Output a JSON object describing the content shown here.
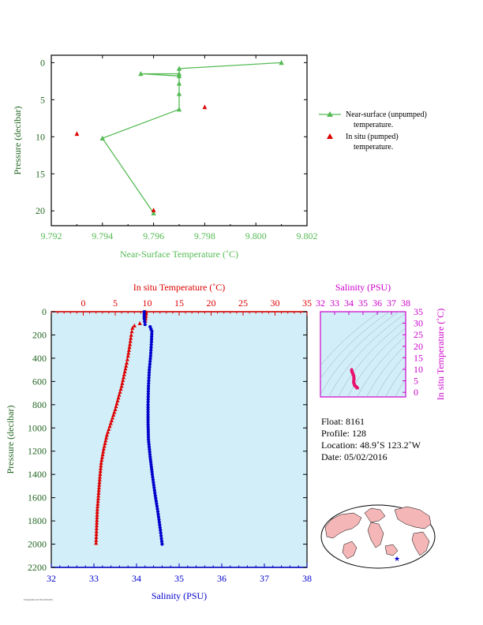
{
  "chart_data": [
    {
      "type": "line",
      "xlabel": "Near-Surface Temperature (˚C)",
      "ylabel": "Pressure (decibar)",
      "xlim": [
        9.792,
        9.802
      ],
      "ylim": [
        22,
        -1
      ],
      "xticks": [
        "9.792",
        "9.794",
        "9.796",
        "9.798",
        "9.800",
        "9.802"
      ],
      "yticks": [
        "0",
        "5",
        "10",
        "15",
        "20"
      ],
      "legend_position": "right",
      "colors": {
        "near_surface": "#55bb55",
        "in_situ": "#dd0000"
      },
      "series": [
        {
          "name": "Near-surface (unpumped)",
          "name2": "temperature.",
          "marker": "triangle",
          "connected": true,
          "points": [
            [
              9.801,
              0.0
            ],
            [
              9.797,
              0.8
            ],
            [
              9.797,
              1.5
            ],
            [
              9.7955,
              1.5
            ],
            [
              9.797,
              1.8
            ],
            [
              9.797,
              2.8
            ],
            [
              9.797,
              4.2
            ],
            [
              9.797,
              6.3
            ],
            [
              9.794,
              10.2
            ],
            [
              9.796,
              20.3
            ]
          ]
        },
        {
          "name": "In situ (pumped)",
          "name2": "temperature.",
          "marker": "triangle",
          "connected": false,
          "points": [
            [
              9.798,
              6.0
            ],
            [
              9.793,
              9.6
            ],
            [
              9.796,
              19.9
            ]
          ]
        }
      ]
    },
    {
      "type": "scatter",
      "xlabel": "Salinity (PSU)",
      "x2label": "In situ Temperature (˚C)",
      "ylabel": "Pressure (decibar)",
      "xlim": [
        32,
        38
      ],
      "x2lim": [
        -5,
        35
      ],
      "ylim": [
        2200,
        0
      ],
      "xticks": [
        "32",
        "33",
        "34",
        "35",
        "36",
        "37",
        "38"
      ],
      "x2ticks": [
        "0",
        "5",
        "10",
        "15",
        "20",
        "25",
        "30",
        "35"
      ],
      "yticks": [
        "0",
        "200",
        "400",
        "600",
        "800",
        "1000",
        "1200",
        "1400",
        "1600",
        "1800",
        "2000",
        "2200"
      ],
      "background": "#d2eef8",
      "colors": {
        "temperature": "#dd0000",
        "salinity": "#0000cc"
      },
      "series": [
        {
          "name": "In situ Temperature",
          "marker": "triangle",
          "axis": "top",
          "points": [
            [
              9.8,
              0
            ],
            [
              9.8,
              40
            ],
            [
              9.7,
              80
            ],
            [
              8.0,
              120
            ],
            [
              7.7,
              140
            ],
            [
              7.5,
              200
            ],
            [
              7.3,
              280
            ],
            [
              7.0,
              380
            ],
            [
              6.8,
              440
            ],
            [
              6.4,
              540
            ],
            [
              6.0,
              640
            ],
            [
              5.5,
              740
            ],
            [
              5.0,
              840
            ],
            [
              4.3,
              960
            ],
            [
              3.7,
              1060
            ],
            [
              3.2,
              1180
            ],
            [
              2.8,
              1300
            ],
            [
              2.6,
              1420
            ],
            [
              2.4,
              1560
            ],
            [
              2.2,
              1700
            ],
            [
              2.1,
              1840
            ],
            [
              2.0,
              1990
            ]
          ]
        },
        {
          "name": "Salinity",
          "marker": "circle",
          "axis": "bottom",
          "points": [
            [
              34.18,
              0
            ],
            [
              34.18,
              60
            ],
            [
              34.2,
              110
            ],
            [
              34.32,
              130
            ],
            [
              34.36,
              170
            ],
            [
              34.35,
              260
            ],
            [
              34.33,
              380
            ],
            [
              34.3,
              500
            ],
            [
              34.28,
              640
            ],
            [
              34.27,
              800
            ],
            [
              34.27,
              950
            ],
            [
              34.28,
              1100
            ],
            [
              34.32,
              1250
            ],
            [
              34.37,
              1400
            ],
            [
              34.43,
              1560
            ],
            [
              34.5,
              1720
            ],
            [
              34.56,
              1880
            ],
            [
              34.6,
              2000
            ]
          ]
        }
      ]
    },
    {
      "type": "scatter",
      "title": "Salinity (PSU)",
      "ylabel": "In situ Temperature (˚C)",
      "xlim": [
        32,
        38
      ],
      "ylim": [
        -2,
        35
      ],
      "xticks": [
        "32",
        "33",
        "34",
        "35",
        "36",
        "37",
        "38"
      ],
      "yticks": [
        "0",
        "5",
        "10",
        "15",
        "20",
        "25",
        "30",
        "35"
      ],
      "background": "#d2eef8",
      "colors": {
        "axis": "#cc00cc",
        "points": "#e8126e"
      },
      "points": [
        [
          34.2,
          9.8
        ],
        [
          34.22,
          9.0
        ],
        [
          34.3,
          8.0
        ],
        [
          34.35,
          7.0
        ],
        [
          34.36,
          6.0
        ],
        [
          34.34,
          4.5
        ],
        [
          34.38,
          3.5
        ],
        [
          34.45,
          2.8
        ],
        [
          34.55,
          2.3
        ],
        [
          34.6,
          2.0
        ]
      ]
    }
  ],
  "float_info": {
    "float": "Float:  8161",
    "profile": "Profile:  128",
    "location": "Location:  48.9˚S  123.2˚W",
    "date": "Date:  05/02/2016"
  },
  "map": {
    "marker": "★",
    "ocean": "#ffffff",
    "land": "#f4b6b6"
  },
  "footer": "FADATAPLOTTED (FIXME)"
}
